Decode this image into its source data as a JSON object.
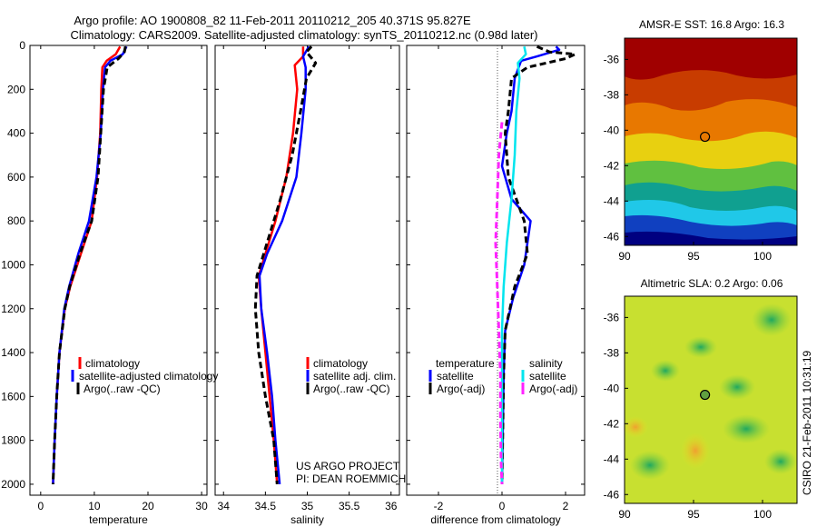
{
  "figure": {
    "title_line1": "Argo profile: AO 1900808_82 11-Feb-2011 20110212_205 40.371S 95.827E",
    "title_line2": "Climatology: CARS2009. Satellite-adjusted climatology: synTS_20110212.nc (0.98d later)",
    "side_label": "CSIRO 21-Feb-2011 10:31:19",
    "project_line1": "US ARGO PROJECT",
    "project_line2": "PI: DEAN ROEMMICH"
  },
  "colors": {
    "climatology": "#ff0000",
    "satellite": "#0000ff",
    "argo": "#000000",
    "sat_salinity": "#00e5ee",
    "argo_salinity": "#ff22ff"
  },
  "chart_data": [
    {
      "id": "temperature",
      "type": "line",
      "xlabel": "temperature",
      "xlim": [
        -2,
        31
      ],
      "ylim": [
        2050,
        0
      ],
      "xticks": [
        0,
        10,
        20,
        30
      ],
      "xtick_labels": [
        "0",
        "10",
        "20",
        "30"
      ],
      "yticks": [
        0,
        200,
        400,
        600,
        800,
        1000,
        1200,
        1400,
        1600,
        1800,
        2000
      ],
      "ytick_labels": [
        "0",
        "200",
        "400",
        "600",
        "800",
        "1000",
        "1200",
        "1400",
        "1600",
        "1800",
        "2000"
      ],
      "legend": [
        "climatology",
        "satellite-adjusted climatology",
        "Argo(..raw -QC)"
      ],
      "series": [
        {
          "name": "climatology",
          "style": "solid",
          "color": "#ff0000",
          "points": [
            [
              14.8,
              5
            ],
            [
              14,
              40
            ],
            [
              12.3,
              70
            ],
            [
              11.5,
              100
            ],
            [
              11.3,
              200
            ],
            [
              11.1,
              400
            ],
            [
              10.5,
              600
            ],
            [
              9.5,
              800
            ],
            [
              7.5,
              950
            ],
            [
              5.5,
              1100
            ],
            [
              4.5,
              1200
            ],
            [
              3.5,
              1400
            ],
            [
              3.0,
              1600
            ],
            [
              2.6,
              1800
            ],
            [
              2.3,
              2000
            ]
          ]
        },
        {
          "name": "satellite-adjusted climatology",
          "style": "solid",
          "color": "#0000ff",
          "points": [
            [
              16.0,
              5
            ],
            [
              15.3,
              40
            ],
            [
              13.0,
              70
            ],
            [
              12.0,
              100
            ],
            [
              11.6,
              200
            ],
            [
              11.2,
              400
            ],
            [
              10.4,
              600
            ],
            [
              9.0,
              800
            ],
            [
              7.0,
              950
            ],
            [
              5.3,
              1100
            ],
            [
              4.4,
              1200
            ],
            [
              3.5,
              1400
            ],
            [
              3.0,
              1600
            ],
            [
              2.6,
              1800
            ],
            [
              2.3,
              2000
            ]
          ]
        },
        {
          "name": "Argo(..raw -QC)",
          "style": "dashed",
          "color": "#000000",
          "points": [
            [
              15.8,
              5
            ],
            [
              15.6,
              30
            ],
            [
              14.5,
              60
            ],
            [
              12.4,
              100
            ],
            [
              11.7,
              200
            ],
            [
              11.2,
              400
            ],
            [
              10.7,
              600
            ],
            [
              9.5,
              800
            ],
            [
              7.3,
              950
            ],
            [
              5.4,
              1100
            ],
            [
              4.5,
              1200
            ],
            [
              3.5,
              1400
            ],
            [
              3.0,
              1600
            ],
            [
              2.6,
              1800
            ],
            [
              2.3,
              2000
            ]
          ]
        }
      ]
    },
    {
      "id": "salinity",
      "type": "line",
      "xlabel": "salinity",
      "xlim": [
        33.9,
        36.1
      ],
      "ylim": [
        2050,
        0
      ],
      "xticks": [
        34,
        34.5,
        35,
        35.5,
        36
      ],
      "xtick_labels": [
        "34",
        "34.5",
        "35",
        "35.5",
        "36"
      ],
      "legend": [
        "climatology",
        "satellite adj. clim.",
        "Argo(..raw -QC)"
      ],
      "series": [
        {
          "name": "climatology",
          "style": "solid",
          "color": "#ff0000",
          "points": [
            [
              34.95,
              5
            ],
            [
              34.95,
              50
            ],
            [
              34.85,
              90
            ],
            [
              34.88,
              200
            ],
            [
              34.83,
              400
            ],
            [
              34.75,
              600
            ],
            [
              34.62,
              800
            ],
            [
              34.5,
              950
            ],
            [
              34.42,
              1050
            ],
            [
              34.45,
              1200
            ],
            [
              34.5,
              1400
            ],
            [
              34.55,
              1600
            ],
            [
              34.6,
              1800
            ],
            [
              34.64,
              2000
            ]
          ]
        },
        {
          "name": "satellite adj. clim.",
          "style": "solid",
          "color": "#0000ff",
          "points": [
            [
              35.02,
              5
            ],
            [
              34.95,
              50
            ],
            [
              34.98,
              100
            ],
            [
              34.98,
              200
            ],
            [
              34.93,
              400
            ],
            [
              34.87,
              600
            ],
            [
              34.7,
              800
            ],
            [
              34.52,
              950
            ],
            [
              34.43,
              1050
            ],
            [
              34.45,
              1200
            ],
            [
              34.52,
              1400
            ],
            [
              34.58,
              1600
            ],
            [
              34.62,
              1800
            ],
            [
              34.67,
              2000
            ]
          ]
        },
        {
          "name": "Argo(..raw -QC)",
          "style": "dashed",
          "color": "#000000",
          "points": [
            [
              35.05,
              5
            ],
            [
              34.99,
              30
            ],
            [
              35.1,
              80
            ],
            [
              34.99,
              150
            ],
            [
              34.92,
              300
            ],
            [
              34.82,
              500
            ],
            [
              34.68,
              700
            ],
            [
              34.52,
              900
            ],
            [
              34.4,
              1050
            ],
            [
              34.38,
              1200
            ],
            [
              34.42,
              1400
            ],
            [
              34.5,
              1600
            ],
            [
              34.6,
              1800
            ],
            [
              34.64,
              2000
            ]
          ]
        }
      ]
    },
    {
      "id": "difference",
      "type": "line",
      "xlabel": "difference from climatology",
      "xlim": [
        -3,
        2.6
      ],
      "ylim": [
        2050,
        0
      ],
      "xticks": [
        -2,
        0,
        2
      ],
      "xtick_labels": [
        "-2",
        "0",
        "2"
      ],
      "legend_temperature": {
        "header": "temperature",
        "items": [
          "satellite",
          "Argo(-adj)"
        ]
      },
      "legend_salinity": {
        "header": "salinity",
        "items": [
          "satellite",
          "Argo(-adj)"
        ]
      },
      "series": [
        {
          "name": "temperature satellite",
          "style": "solid",
          "color": "#0000ff",
          "points": [
            [
              1.7,
              5
            ],
            [
              1.8,
              20
            ],
            [
              1.1,
              50
            ],
            [
              0.6,
              70
            ],
            [
              0.4,
              150
            ],
            [
              0.3,
              300
            ],
            [
              0.15,
              400
            ],
            [
              0.0,
              550
            ],
            [
              0.3,
              700
            ],
            [
              0.9,
              800
            ],
            [
              0.7,
              1000
            ],
            [
              0.35,
              1150
            ],
            [
              0.1,
              1300
            ],
            [
              0.05,
              1500
            ],
            [
              0.0,
              2000
            ]
          ]
        },
        {
          "name": "temperature Argo(-adj)",
          "style": "dashed",
          "color": "#000000",
          "points": [
            [
              1.1,
              5
            ],
            [
              1.5,
              30
            ],
            [
              2.3,
              40
            ],
            [
              2.0,
              60
            ],
            [
              0.8,
              100
            ],
            [
              0.3,
              150
            ],
            [
              0.2,
              300
            ],
            [
              0.1,
              400
            ],
            [
              0.2,
              600
            ],
            [
              0.7,
              800
            ],
            [
              0.8,
              950
            ],
            [
              0.4,
              1100
            ],
            [
              0.1,
              1300
            ],
            [
              0.05,
              1500
            ],
            [
              0.0,
              2000
            ]
          ]
        },
        {
          "name": "salinity satellite",
          "style": "solid",
          "color": "#00e5ee",
          "points": [
            [
              0.7,
              5
            ],
            [
              0.75,
              40
            ],
            [
              0.5,
              80
            ],
            [
              0.55,
              150
            ],
            [
              0.45,
              300
            ],
            [
              0.4,
              500
            ],
            [
              0.3,
              700
            ],
            [
              0.15,
              900
            ],
            [
              0.05,
              1100
            ],
            [
              0.0,
              1300
            ],
            [
              0.0,
              2000
            ]
          ]
        },
        {
          "name": "salinity Argo(-adj)",
          "style": "dashed",
          "color": "#ff22ff",
          "points": [
            [
              0.0,
              350
            ],
            [
              -0.1,
              500
            ],
            [
              -0.15,
              700
            ],
            [
              -0.2,
              900
            ],
            [
              -0.15,
              1100
            ],
            [
              -0.1,
              1300
            ],
            [
              -0.05,
              1500
            ],
            [
              -0.05,
              1700
            ],
            [
              -0.03,
              1900
            ],
            [
              0.0,
              2000
            ]
          ]
        }
      ]
    }
  ],
  "maps": [
    {
      "id": "sst",
      "type": "heatmap",
      "title": "AMSR-E SST: 16.8 Argo: 16.3",
      "xlim": [
        90,
        102.5
      ],
      "ylim": [
        -46.5,
        -34.8
      ],
      "xticks": [
        90,
        95,
        100
      ],
      "xtick_labels": [
        "90",
        "95",
        "100"
      ],
      "yticks": [
        -36,
        -38,
        -40,
        -42,
        -44,
        -46
      ],
      "ytick_labels": [
        "-36",
        "-38",
        "-40",
        "-42",
        "-44",
        "-46"
      ],
      "marker": {
        "lon": 95.83,
        "lat": -40.37
      }
    },
    {
      "id": "sla",
      "type": "heatmap",
      "title": "Altimetric SLA: 0.2 Argo: 0.06",
      "xlim": [
        90,
        102.5
      ],
      "ylim": [
        -46.5,
        -34.8
      ],
      "xticks": [
        90,
        95,
        100
      ],
      "xtick_labels": [
        "90",
        "95",
        "100"
      ],
      "yticks": [
        -36,
        -38,
        -40,
        -42,
        -44,
        -46
      ],
      "ytick_labels": [
        "-36",
        "-38",
        "-40",
        "-42",
        "-44",
        "-46"
      ],
      "marker": {
        "lon": 95.83,
        "lat": -40.37
      }
    }
  ]
}
